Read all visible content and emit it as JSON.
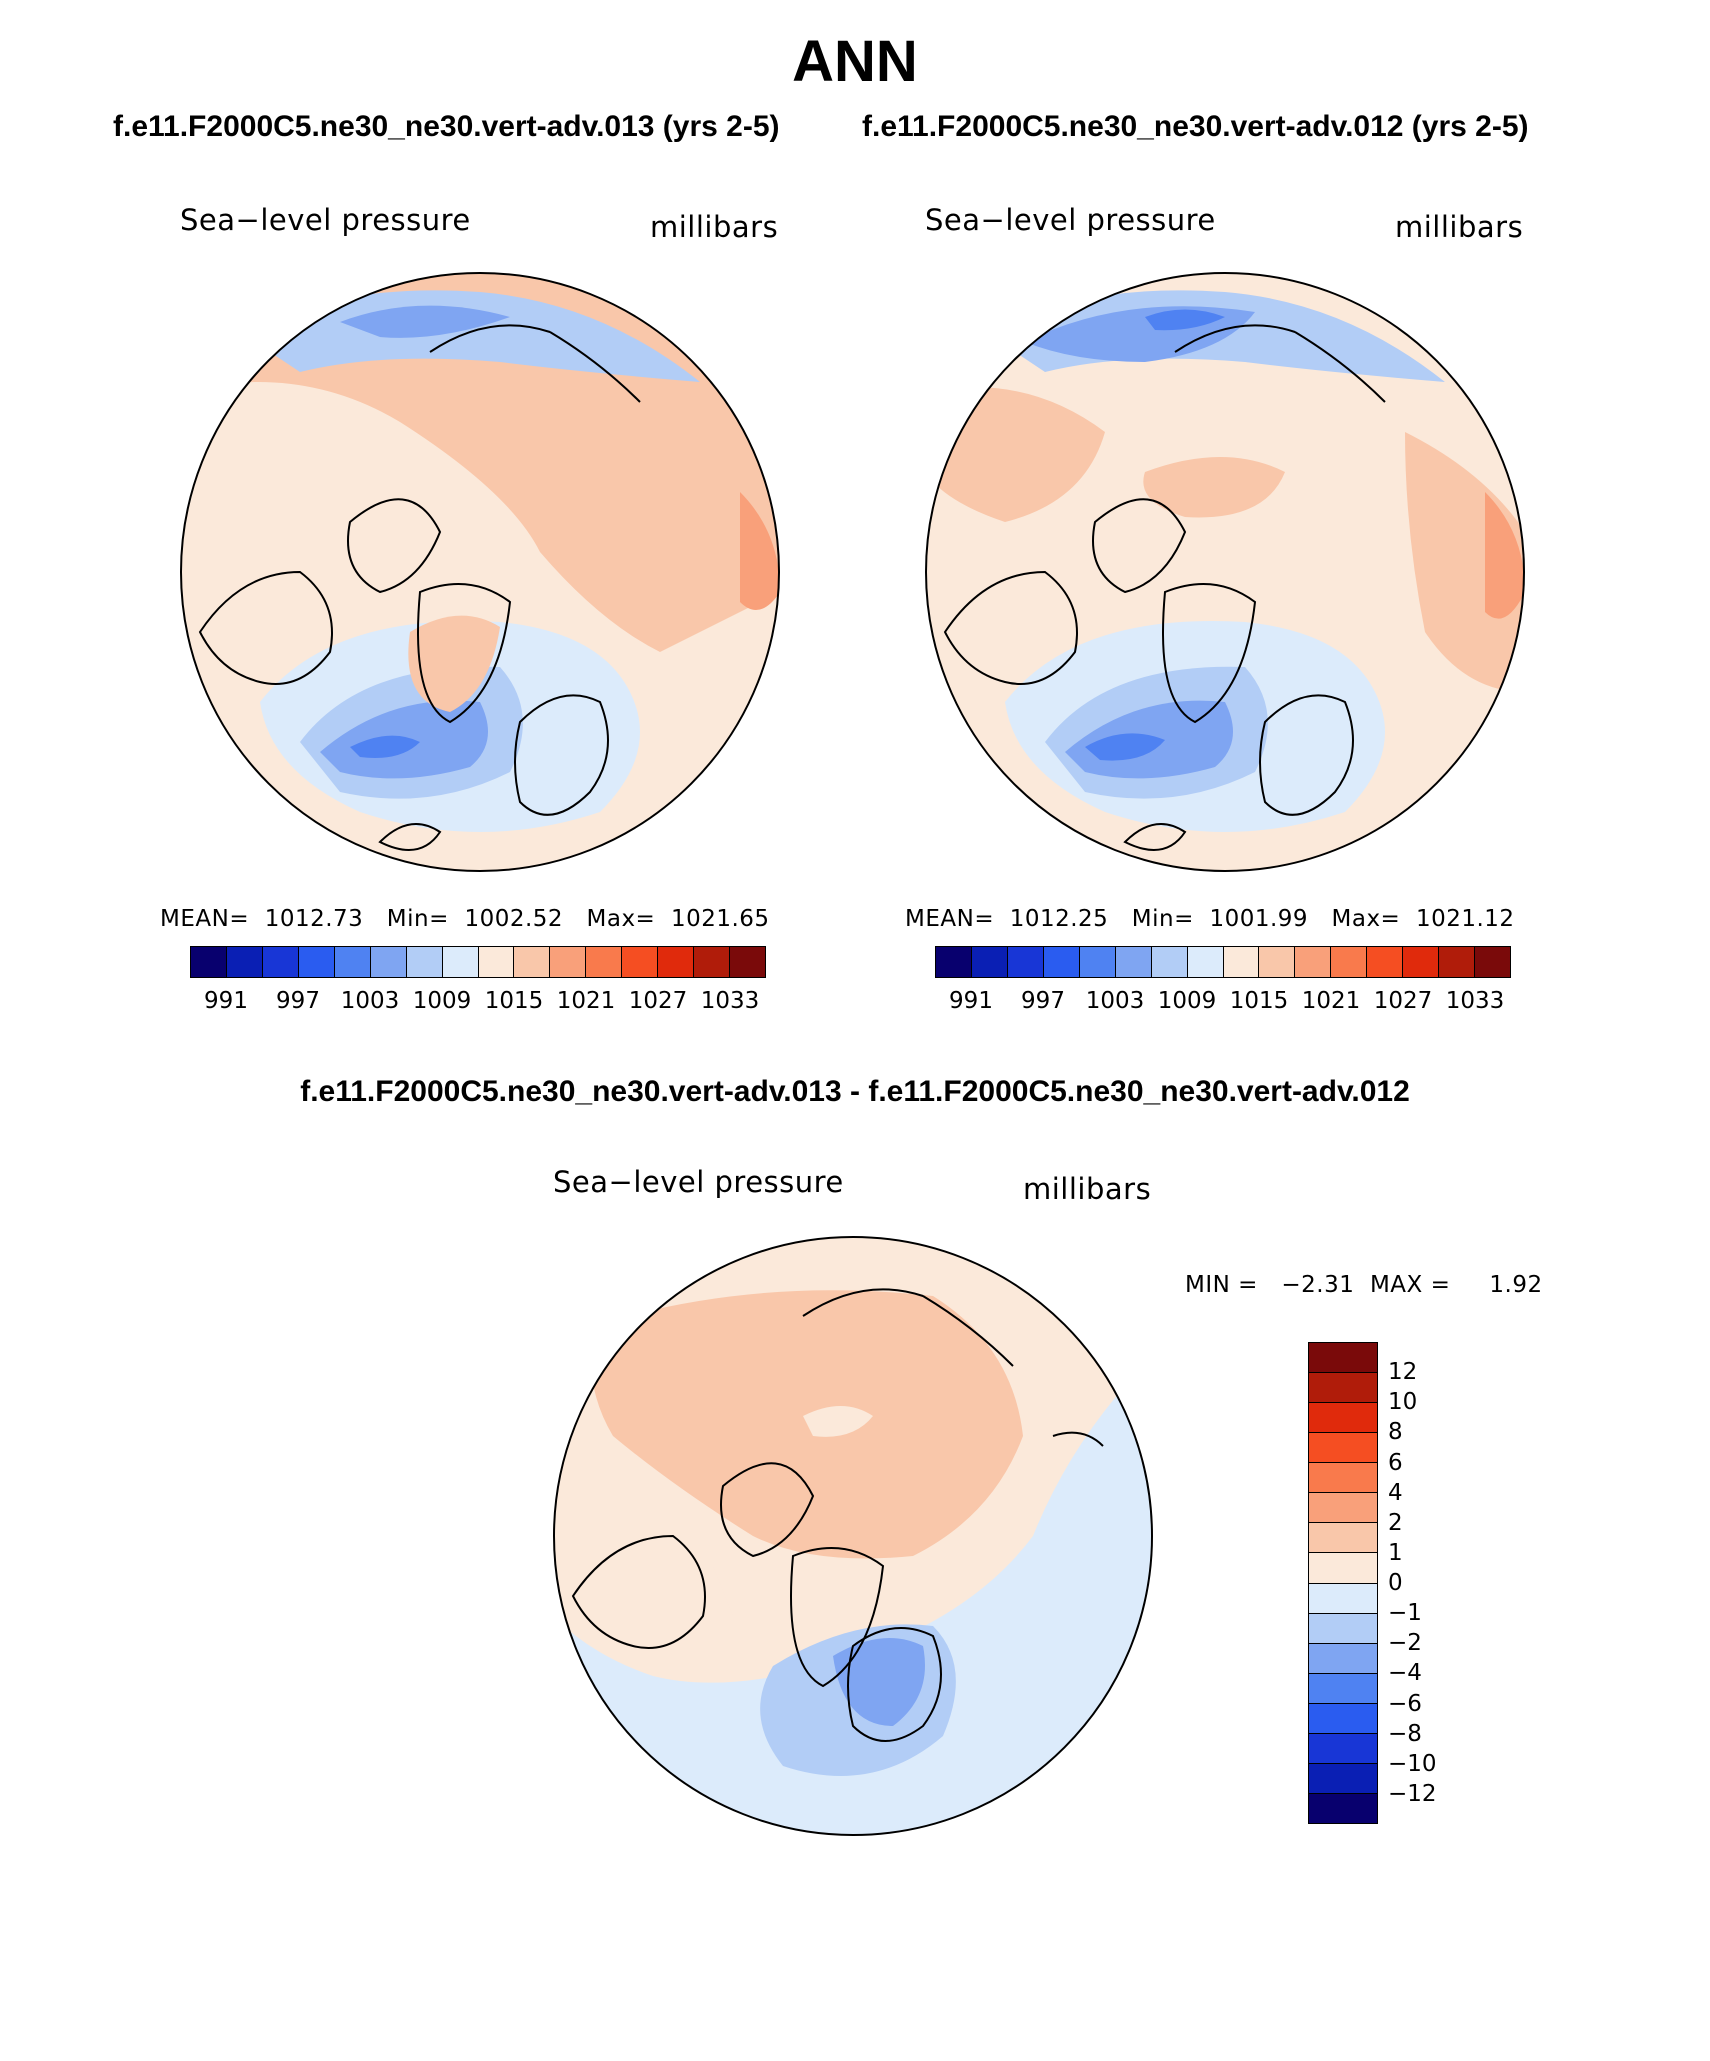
{
  "title": "ANN",
  "case_titles": {
    "left": "f.e11.F2000C5.ne30_ne30.vert-adv.013 (yrs 2-5)",
    "right": "f.e11.F2000C5.ne30_ne30.vert-adv.012 (yrs 2-5)",
    "diff": "f.e11.F2000C5.ne30_ne30.vert-adv.013 - f.e11.F2000C5.ne30_ne30.vert-adv.012"
  },
  "panels": [
    {
      "variable": "Sea−level pressure",
      "units": "millibars",
      "stats": "MEAN=  1012.73   Min=  1002.52   Max=  1021.65",
      "colorbar_ticks": [
        "991",
        "997",
        "1003",
        "1009",
        "1015",
        "1021",
        "1027",
        "1033"
      ]
    },
    {
      "variable": "Sea−level pressure",
      "units": "millibars",
      "stats": "MEAN=  1012.25   Min=  1001.99   Max=  1021.12",
      "colorbar_ticks": [
        "991",
        "997",
        "1003",
        "1009",
        "1015",
        "1021",
        "1027",
        "1033"
      ]
    },
    {
      "variable": "Sea−level pressure",
      "units": "millibars",
      "stats": "MIN =   −2.31  MAX =     1.92",
      "colorbar_ticks": [
        "12",
        "10",
        "8",
        "6",
        "4",
        "2",
        "1",
        "0",
        "−1",
        "−2",
        "−4",
        "−6",
        "−8",
        "−10",
        "−12"
      ]
    }
  ],
  "colorbar_colors": {
    "absolute": [
      "#08006e",
      "#0a1fb4",
      "#1836d6",
      "#2a5cf0",
      "#4f82f2",
      "#7fa5f2",
      "#b2cdf6",
      "#dcebfb",
      "#fbe9da",
      "#f9c7aa",
      "#f9a07a",
      "#f97a4c",
      "#f54e22",
      "#e02a0c",
      "#b01c0a",
      "#7a0a0a"
    ],
    "difference": [
      "#7a0a0a",
      "#b01c0a",
      "#e02a0c",
      "#f54e22",
      "#f97a4c",
      "#f9a07a",
      "#f9c7aa",
      "#fbe9da",
      "#dcebfb",
      "#b2cdf6",
      "#7fa5f2",
      "#4f82f2",
      "#2a5cf0",
      "#1836d6",
      "#0a1fb4",
      "#08006e"
    ]
  }
}
